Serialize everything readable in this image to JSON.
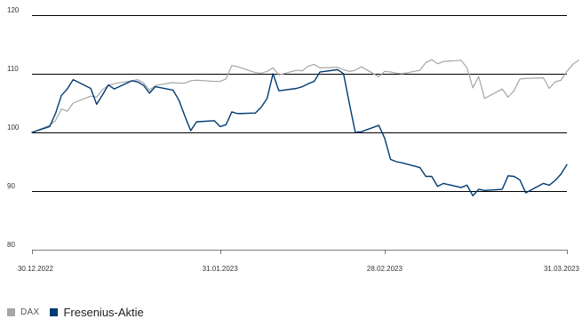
{
  "chart_data": {
    "type": "line",
    "title": "",
    "xlabel": "",
    "ylabel": "",
    "ylim": [
      80,
      120
    ],
    "yticks": [
      80,
      90,
      100,
      110,
      120
    ],
    "xlim": [
      "2022-12-30",
      "2023-03-31"
    ],
    "xticks": [
      "2022-12-30",
      "2023-01-31",
      "2023-02-28",
      "2023-03-31"
    ],
    "xtick_labels": [
      "30.12.2022",
      "31.01.2023",
      "28.02.2023",
      "31.03.2023"
    ],
    "grid": "horizontal",
    "legend": "bottom-left",
    "series": [
      {
        "name": "DAX",
        "color": "#a6a6a6",
        "points": [
          [
            "2022-12-30",
            100.0
          ],
          [
            "2023-01-02",
            101.2
          ],
          [
            "2023-01-03",
            102.0
          ],
          [
            "2023-01-04",
            104.0
          ],
          [
            "2023-01-05",
            103.6
          ],
          [
            "2023-01-06",
            105.0
          ],
          [
            "2023-01-09",
            106.2
          ],
          [
            "2023-01-10",
            106.0
          ],
          [
            "2023-01-11",
            107.3
          ],
          [
            "2023-01-12",
            108.0
          ],
          [
            "2023-01-13",
            108.3
          ],
          [
            "2023-01-16",
            108.8
          ],
          [
            "2023-01-17",
            109.0
          ],
          [
            "2023-01-18",
            108.4
          ],
          [
            "2023-01-19",
            107.2
          ],
          [
            "2023-01-20",
            108.0
          ],
          [
            "2023-01-23",
            108.5
          ],
          [
            "2023-01-24",
            108.4
          ],
          [
            "2023-01-25",
            108.4
          ],
          [
            "2023-01-26",
            108.8
          ],
          [
            "2023-01-27",
            108.9
          ],
          [
            "2023-01-30",
            108.7
          ],
          [
            "2023-01-31",
            108.7
          ],
          [
            "2023-02-01",
            109.1
          ],
          [
            "2023-02-02",
            111.4
          ],
          [
            "2023-02-03",
            111.2
          ],
          [
            "2023-02-06",
            110.2
          ],
          [
            "2023-02-07",
            110.1
          ],
          [
            "2023-02-08",
            110.4
          ],
          [
            "2023-02-09",
            111.0
          ],
          [
            "2023-02-10",
            109.8
          ],
          [
            "2023-02-13",
            110.6
          ],
          [
            "2023-02-14",
            110.5
          ],
          [
            "2023-02-15",
            111.3
          ],
          [
            "2023-02-16",
            111.6
          ],
          [
            "2023-02-17",
            111.0
          ],
          [
            "2023-02-20",
            111.1
          ],
          [
            "2023-02-21",
            110.7
          ],
          [
            "2023-02-22",
            110.4
          ],
          [
            "2023-02-23",
            110.6
          ],
          [
            "2023-02-24",
            111.2
          ],
          [
            "2023-02-27",
            109.5
          ],
          [
            "2023-02-28",
            110.4
          ],
          [
            "2023-03-01",
            110.3
          ],
          [
            "2023-03-02",
            110.1
          ],
          [
            "2023-03-03",
            110.0
          ],
          [
            "2023-03-06",
            110.6
          ],
          [
            "2023-03-07",
            111.9
          ],
          [
            "2023-03-08",
            112.4
          ],
          [
            "2023-03-09",
            111.7
          ],
          [
            "2023-03-10",
            112.1
          ],
          [
            "2023-03-13",
            112.3
          ],
          [
            "2023-03-14",
            111.0
          ],
          [
            "2023-03-15",
            107.6
          ],
          [
            "2023-03-16",
            109.5
          ],
          [
            "2023-03-17",
            105.8
          ],
          [
            "2023-03-20",
            107.4
          ],
          [
            "2023-03-21",
            106.0
          ],
          [
            "2023-03-22",
            107.1
          ],
          [
            "2023-03-23",
            109.1
          ],
          [
            "2023-03-24",
            109.2
          ],
          [
            "2023-03-27",
            109.3
          ],
          [
            "2023-03-28",
            107.5
          ],
          [
            "2023-03-29",
            108.6
          ],
          [
            "2023-03-30",
            108.9
          ],
          [
            "2023-03-31",
            110.4
          ],
          [
            "2023-04-01",
            111.6
          ],
          [
            "2023-04-02",
            112.3
          ]
        ]
      },
      {
        "name": "Fresenius-Aktie",
        "color": "#003b71",
        "points": [
          [
            "2022-12-30",
            100.0
          ],
          [
            "2023-01-02",
            101.0
          ],
          [
            "2023-01-03",
            103.2
          ],
          [
            "2023-01-04",
            106.3
          ],
          [
            "2023-01-05",
            107.4
          ],
          [
            "2023-01-06",
            109.0
          ],
          [
            "2023-01-09",
            107.5
          ],
          [
            "2023-01-10",
            104.8
          ],
          [
            "2023-01-11",
            106.4
          ],
          [
            "2023-01-12",
            108.1
          ],
          [
            "2023-01-13",
            107.4
          ],
          [
            "2023-01-16",
            108.8
          ],
          [
            "2023-01-17",
            108.6
          ],
          [
            "2023-01-18",
            108.0
          ],
          [
            "2023-01-19",
            106.7
          ],
          [
            "2023-01-20",
            107.8
          ],
          [
            "2023-01-23",
            107.2
          ],
          [
            "2023-01-24",
            105.5
          ],
          [
            "2023-01-25",
            102.8
          ],
          [
            "2023-01-26",
            100.3
          ],
          [
            "2023-01-27",
            101.8
          ],
          [
            "2023-01-30",
            102.0
          ],
          [
            "2023-01-31",
            101.0
          ],
          [
            "2023-02-01",
            101.3
          ],
          [
            "2023-02-02",
            103.5
          ],
          [
            "2023-02-03",
            103.2
          ],
          [
            "2023-02-06",
            103.3
          ],
          [
            "2023-02-07",
            104.3
          ],
          [
            "2023-02-08",
            105.8
          ],
          [
            "2023-02-09",
            110.0
          ],
          [
            "2023-02-10",
            107.1
          ],
          [
            "2023-02-13",
            107.5
          ],
          [
            "2023-02-14",
            107.8
          ],
          [
            "2023-02-15",
            108.3
          ],
          [
            "2023-02-16",
            108.7
          ],
          [
            "2023-02-17",
            110.3
          ],
          [
            "2023-02-20",
            110.7
          ],
          [
            "2023-02-21",
            110.0
          ],
          [
            "2023-02-22",
            104.9
          ],
          [
            "2023-02-23",
            100.0
          ],
          [
            "2023-02-24",
            100.1
          ],
          [
            "2023-02-27",
            101.2
          ],
          [
            "2023-02-28",
            99.0
          ],
          [
            "2023-03-01",
            95.4
          ],
          [
            "2023-03-02",
            95.0
          ],
          [
            "2023-03-03",
            94.8
          ],
          [
            "2023-03-06",
            94.0
          ],
          [
            "2023-03-07",
            92.5
          ],
          [
            "2023-03-08",
            92.5
          ],
          [
            "2023-03-09",
            90.8
          ],
          [
            "2023-03-10",
            91.3
          ],
          [
            "2023-03-13",
            90.6
          ],
          [
            "2023-03-14",
            91.0
          ],
          [
            "2023-03-15",
            89.2
          ],
          [
            "2023-03-16",
            90.3
          ],
          [
            "2023-03-17",
            90.1
          ],
          [
            "2023-03-20",
            90.3
          ],
          [
            "2023-03-21",
            92.6
          ],
          [
            "2023-03-22",
            92.5
          ],
          [
            "2023-03-23",
            91.9
          ],
          [
            "2023-03-24",
            89.7
          ],
          [
            "2023-03-27",
            91.3
          ],
          [
            "2023-03-28",
            91.0
          ],
          [
            "2023-03-29",
            91.8
          ],
          [
            "2023-03-30",
            92.9
          ],
          [
            "2023-03-31",
            94.5
          ]
        ]
      }
    ]
  }
}
